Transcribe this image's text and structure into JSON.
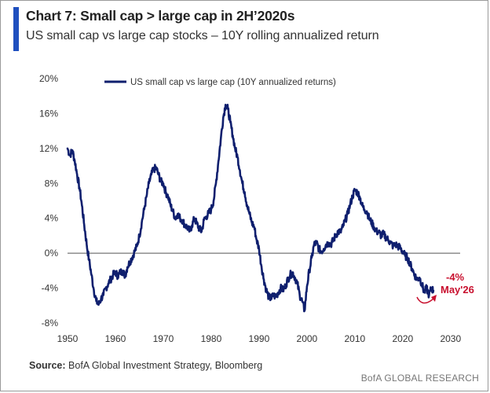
{
  "header": {
    "title": "Chart 7: Small cap > large cap in 2H’2020s",
    "subtitle": "US small cap vs large cap stocks – 10Y rolling annualized return"
  },
  "footer": {
    "source_label": "Source:",
    "source_text": "BofA Global Investment Strategy, Bloomberg",
    "brand": "BofA GLOBAL RESEARCH"
  },
  "colors": {
    "series": "#0f1f6e",
    "accent": "#1f4fbf",
    "annotation": "#c8102e"
  },
  "chart_data": {
    "type": "line",
    "title": "",
    "xlabel": "",
    "ylabel": "",
    "xlim": [
      1950,
      2032
    ],
    "ylim": [
      -8,
      20
    ],
    "x_ticks": [
      1950,
      1960,
      1970,
      1980,
      1990,
      2000,
      2010,
      2020,
      2030
    ],
    "x_tick_labels": [
      "1950",
      "1960",
      "1970",
      "1980",
      "1990",
      "2000",
      "2010",
      "2020",
      "2030"
    ],
    "y_ticks": [
      -8,
      -4,
      0,
      4,
      8,
      12,
      16,
      20
    ],
    "y_tick_labels": [
      "-8%",
      "-4%",
      "0%",
      "4%",
      "8%",
      "12%",
      "16%",
      "20%"
    ],
    "zero_line": true,
    "grid": false,
    "legend_position": "top",
    "series": [
      {
        "name": "US small cap vs large cap (10Y annualized returns)",
        "x": [
          1950.0,
          1950.5,
          1951.0,
          1951.5,
          1952.0,
          1952.5,
          1953.0,
          1953.5,
          1954.0,
          1954.5,
          1955.0,
          1955.5,
          1956.0,
          1956.5,
          1957.0,
          1957.5,
          1958.0,
          1958.5,
          1959.0,
          1959.5,
          1960.0,
          1960.5,
          1961.0,
          1961.5,
          1962.0,
          1962.5,
          1963.0,
          1963.5,
          1964.0,
          1964.5,
          1965.0,
          1965.5,
          1966.0,
          1966.5,
          1967.0,
          1967.5,
          1968.0,
          1968.5,
          1969.0,
          1969.5,
          1970.0,
          1970.5,
          1971.0,
          1971.5,
          1972.0,
          1972.5,
          1973.0,
          1973.5,
          1974.0,
          1974.5,
          1975.0,
          1975.5,
          1976.0,
          1976.5,
          1977.0,
          1977.5,
          1978.0,
          1978.5,
          1979.0,
          1979.5,
          1980.0,
          1980.5,
          1981.0,
          1981.5,
          1982.0,
          1982.5,
          1983.0,
          1983.5,
          1984.0,
          1984.5,
          1985.0,
          1985.5,
          1986.0,
          1986.5,
          1987.0,
          1987.5,
          1988.0,
          1988.5,
          1989.0,
          1989.5,
          1990.0,
          1990.5,
          1991.0,
          1991.5,
          1992.0,
          1992.5,
          1993.0,
          1993.5,
          1994.0,
          1994.5,
          1995.0,
          1995.5,
          1996.0,
          1996.5,
          1997.0,
          1997.5,
          1998.0,
          1998.5,
          1999.0,
          1999.5,
          2000.0,
          2000.5,
          2001.0,
          2001.5,
          2002.0,
          2002.5,
          2003.0,
          2003.5,
          2004.0,
          2004.5,
          2005.0,
          2005.5,
          2006.0,
          2006.5,
          2007.0,
          2007.5,
          2008.0,
          2008.5,
          2009.0,
          2009.5,
          2010.0,
          2010.5,
          2011.0,
          2011.5,
          2012.0,
          2012.5,
          2013.0,
          2013.5,
          2014.0,
          2014.5,
          2015.0,
          2015.5,
          2016.0,
          2016.5,
          2017.0,
          2017.5,
          2018.0,
          2018.5,
          2019.0,
          2019.5,
          2020.0,
          2020.5,
          2021.0,
          2021.5,
          2022.0,
          2022.5,
          2023.0,
          2023.5,
          2024.0,
          2024.5,
          2025.0,
          2025.5,
          2026.0,
          2026.4
        ],
        "values": [
          12.0,
          11.2,
          11.8,
          10.6,
          9.0,
          7.5,
          5.5,
          3.2,
          1.0,
          -0.8,
          -2.5,
          -4.2,
          -5.5,
          -5.9,
          -5.2,
          -4.8,
          -4.0,
          -3.5,
          -3.0,
          -2.5,
          -2.2,
          -2.6,
          -2.2,
          -2.0,
          -2.6,
          -1.6,
          -1.0,
          -0.5,
          0.2,
          0.8,
          2.0,
          3.5,
          5.0,
          6.5,
          8.0,
          9.0,
          9.6,
          9.8,
          9.0,
          8.2,
          8.0,
          7.0,
          6.5,
          5.5,
          4.8,
          4.0,
          4.5,
          4.0,
          3.8,
          3.2,
          3.0,
          2.5,
          3.2,
          4.0,
          3.4,
          2.8,
          2.5,
          3.8,
          4.2,
          4.6,
          5.0,
          6.0,
          8.0,
          10.5,
          13.0,
          15.5,
          17.0,
          16.5,
          15.0,
          13.5,
          12.0,
          11.0,
          9.5,
          8.0,
          7.0,
          5.5,
          4.5,
          3.5,
          3.0,
          1.5,
          0.5,
          -1.5,
          -3.0,
          -4.2,
          -5.0,
          -5.2,
          -4.8,
          -5.0,
          -4.5,
          -4.0,
          -4.2,
          -3.8,
          -3.0,
          -2.5,
          -2.2,
          -2.8,
          -3.5,
          -4.8,
          -5.5,
          -6.6,
          -3.8,
          -2.0,
          -0.5,
          1.0,
          1.2,
          0.5,
          0.2,
          0.5,
          1.0,
          1.2,
          1.0,
          1.5,
          2.0,
          2.5,
          2.4,
          3.0,
          3.8,
          4.5,
          5.5,
          6.5,
          7.2,
          7.0,
          6.5,
          5.5,
          5.0,
          4.8,
          4.0,
          3.5,
          3.0,
          2.5,
          2.4,
          2.0,
          2.2,
          1.8,
          1.5,
          1.2,
          0.8,
          1.0,
          0.8,
          0.6,
          0.2,
          -0.3,
          -0.5,
          -1.2,
          -1.8,
          -2.5,
          -3.0,
          -2.8,
          -3.5,
          -4.5,
          -4.0,
          -4.8,
          -4.0,
          -4.3
        ]
      }
    ],
    "annotations": [
      {
        "x": 2026.4,
        "y": -4.3,
        "lines": [
          "-4%",
          "May'26"
        ]
      }
    ]
  }
}
